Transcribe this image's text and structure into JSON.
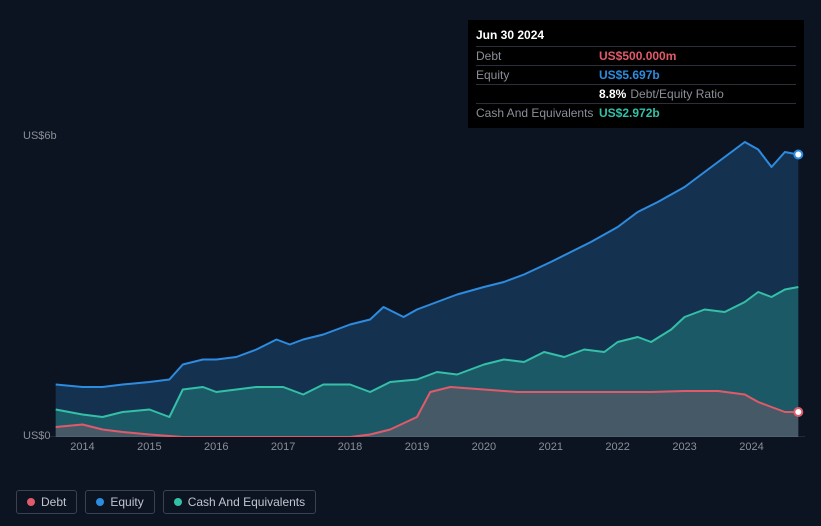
{
  "tooltip": {
    "date": "Jun 30 2024",
    "rows": [
      {
        "label": "Debt",
        "value": "US$500.000m",
        "color": "#e05a6a"
      },
      {
        "label": "Equity",
        "value": "US$5.697b",
        "color": "#2d8ce0"
      },
      {
        "label": "",
        "pct": "8.8%",
        "txt": "Debt/Equity Ratio"
      },
      {
        "label": "Cash And Equivalents",
        "value": "US$2.972b",
        "color": "#34c0a7"
      }
    ]
  },
  "chart": {
    "type": "area",
    "background": "#0d1421",
    "grid_color": "#1a2230",
    "y_axis": {
      "min": 0,
      "max": 6,
      "labels": [
        {
          "text": "US$6b",
          "at": 6
        },
        {
          "text": "US$0",
          "at": 0
        }
      ]
    },
    "x_axis": {
      "min": 2013.5,
      "max": 2024.8,
      "ticks": [
        2014,
        2015,
        2016,
        2017,
        2018,
        2019,
        2020,
        2021,
        2022,
        2023,
        2024
      ]
    },
    "series": [
      {
        "name": "Equity",
        "color": "#2d8ce0",
        "fill": "rgba(45,140,224,0.25)",
        "line_width": 2,
        "points": [
          [
            2013.6,
            1.05
          ],
          [
            2014.0,
            1.0
          ],
          [
            2014.3,
            1.0
          ],
          [
            2014.6,
            1.05
          ],
          [
            2015.0,
            1.1
          ],
          [
            2015.3,
            1.15
          ],
          [
            2015.5,
            1.45
          ],
          [
            2015.8,
            1.55
          ],
          [
            2016.0,
            1.55
          ],
          [
            2016.3,
            1.6
          ],
          [
            2016.6,
            1.75
          ],
          [
            2016.9,
            1.95
          ],
          [
            2017.1,
            1.85
          ],
          [
            2017.3,
            1.95
          ],
          [
            2017.6,
            2.05
          ],
          [
            2018.0,
            2.25
          ],
          [
            2018.3,
            2.35
          ],
          [
            2018.5,
            2.6
          ],
          [
            2018.8,
            2.4
          ],
          [
            2019.0,
            2.55
          ],
          [
            2019.3,
            2.7
          ],
          [
            2019.6,
            2.85
          ],
          [
            2020.0,
            3.0
          ],
          [
            2020.3,
            3.1
          ],
          [
            2020.6,
            3.25
          ],
          [
            2021.0,
            3.5
          ],
          [
            2021.3,
            3.7
          ],
          [
            2021.6,
            3.9
          ],
          [
            2022.0,
            4.2
          ],
          [
            2022.3,
            4.5
          ],
          [
            2022.6,
            4.7
          ],
          [
            2023.0,
            5.0
          ],
          [
            2023.3,
            5.3
          ],
          [
            2023.6,
            5.6
          ],
          [
            2023.9,
            5.9
          ],
          [
            2024.1,
            5.75
          ],
          [
            2024.3,
            5.4
          ],
          [
            2024.5,
            5.7
          ],
          [
            2024.7,
            5.65
          ]
        ]
      },
      {
        "name": "Cash And Equivalents",
        "color": "#34c0a7",
        "fill": "rgba(52,192,167,0.28)",
        "line_width": 2,
        "points": [
          [
            2013.6,
            0.55
          ],
          [
            2014.0,
            0.45
          ],
          [
            2014.3,
            0.4
          ],
          [
            2014.6,
            0.5
          ],
          [
            2015.0,
            0.55
          ],
          [
            2015.3,
            0.4
          ],
          [
            2015.5,
            0.95
          ],
          [
            2015.8,
            1.0
          ],
          [
            2016.0,
            0.9
          ],
          [
            2016.3,
            0.95
          ],
          [
            2016.6,
            1.0
          ],
          [
            2017.0,
            1.0
          ],
          [
            2017.3,
            0.85
          ],
          [
            2017.6,
            1.05
          ],
          [
            2018.0,
            1.05
          ],
          [
            2018.3,
            0.9
          ],
          [
            2018.6,
            1.1
          ],
          [
            2019.0,
            1.15
          ],
          [
            2019.3,
            1.3
          ],
          [
            2019.6,
            1.25
          ],
          [
            2020.0,
            1.45
          ],
          [
            2020.3,
            1.55
          ],
          [
            2020.6,
            1.5
          ],
          [
            2020.9,
            1.7
          ],
          [
            2021.2,
            1.6
          ],
          [
            2021.5,
            1.75
          ],
          [
            2021.8,
            1.7
          ],
          [
            2022.0,
            1.9
          ],
          [
            2022.3,
            2.0
          ],
          [
            2022.5,
            1.9
          ],
          [
            2022.8,
            2.15
          ],
          [
            2023.0,
            2.4
          ],
          [
            2023.3,
            2.55
          ],
          [
            2023.6,
            2.5
          ],
          [
            2023.9,
            2.7
          ],
          [
            2024.1,
            2.9
          ],
          [
            2024.3,
            2.8
          ],
          [
            2024.5,
            2.95
          ],
          [
            2024.7,
            3.0
          ]
        ]
      },
      {
        "name": "Debt",
        "color": "#e05a6a",
        "fill": "rgba(224,90,106,0.22)",
        "line_width": 2,
        "points": [
          [
            2013.6,
            0.2
          ],
          [
            2014.0,
            0.25
          ],
          [
            2014.3,
            0.15
          ],
          [
            2014.6,
            0.1
          ],
          [
            2015.0,
            0.05
          ],
          [
            2015.5,
            0.0
          ],
          [
            2016.0,
            0.0
          ],
          [
            2016.5,
            0.0
          ],
          [
            2017.0,
            0.0
          ],
          [
            2017.5,
            0.0
          ],
          [
            2018.0,
            0.0
          ],
          [
            2018.3,
            0.05
          ],
          [
            2018.6,
            0.15
          ],
          [
            2019.0,
            0.4
          ],
          [
            2019.2,
            0.9
          ],
          [
            2019.5,
            1.0
          ],
          [
            2020.0,
            0.95
          ],
          [
            2020.5,
            0.9
          ],
          [
            2021.0,
            0.9
          ],
          [
            2021.5,
            0.9
          ],
          [
            2022.0,
            0.9
          ],
          [
            2022.5,
            0.9
          ],
          [
            2023.0,
            0.92
          ],
          [
            2023.5,
            0.92
          ],
          [
            2023.9,
            0.85
          ],
          [
            2024.1,
            0.7
          ],
          [
            2024.3,
            0.6
          ],
          [
            2024.5,
            0.5
          ],
          [
            2024.7,
            0.5
          ]
        ]
      }
    ],
    "legend": [
      {
        "label": "Debt",
        "color": "#e05a6a"
      },
      {
        "label": "Equity",
        "color": "#2d8ce0"
      },
      {
        "label": "Cash And Equivalents",
        "color": "#34c0a7"
      }
    ],
    "end_markers": [
      {
        "series": "Equity",
        "x": 2024.7,
        "y": 5.65,
        "ring": "#2d8ce0"
      },
      {
        "series": "Debt",
        "x": 2024.7,
        "y": 0.5,
        "ring": "#e05a6a"
      }
    ]
  }
}
